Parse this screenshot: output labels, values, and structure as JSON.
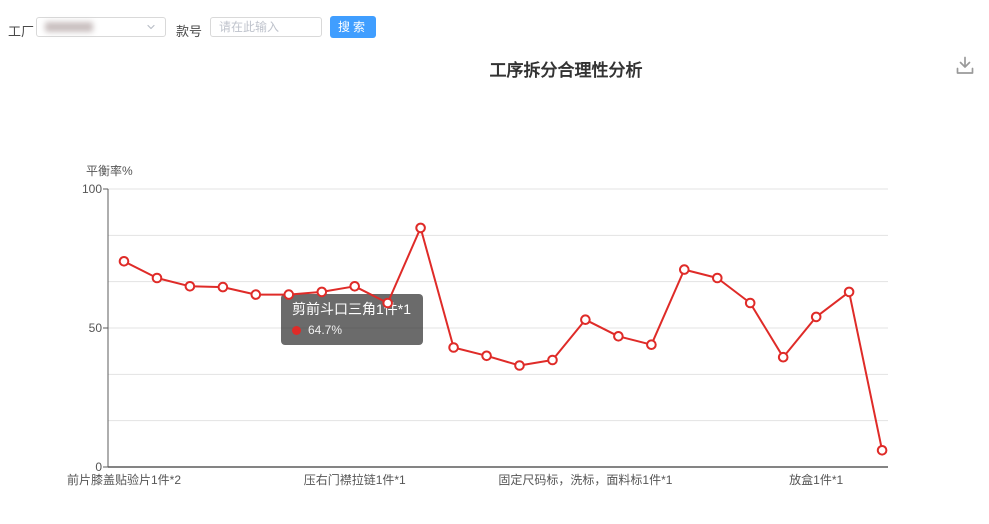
{
  "colors": {
    "accent_blue": "#409eff",
    "line_red": "#df2b28",
    "tooltip_bg": "rgba(50,50,50,0.72)",
    "grid_line": "#e3e3e3",
    "axis_line": "#5c5c5c"
  },
  "toolbar": {
    "factory_label": "工厂",
    "factory_select": {
      "value_redacted": true,
      "chevron_icon": "chevron-down-icon"
    },
    "style_label": "款号",
    "style_input": {
      "value": "",
      "placeholder": "请在此输入"
    },
    "search_button_label": "搜索"
  },
  "header": {
    "title": "工序拆分合理性分析",
    "download_icon": "download-icon"
  },
  "chart_data": {
    "type": "line",
    "title": "工序拆分合理性分析",
    "ylabel": "平衡率%",
    "xlabel": "",
    "ylim": [
      0,
      100
    ],
    "yticks": [
      0,
      50,
      100
    ],
    "grid": true,
    "grid_splits": 6,
    "legend": "none",
    "marker": "hollow-circle",
    "series": [
      {
        "name": "平衡率",
        "values": [
          74,
          68,
          65,
          64.7,
          62,
          62,
          63,
          65,
          59,
          86,
          43,
          40,
          36.5,
          38.5,
          53,
          47,
          44,
          71,
          68,
          59,
          39.5,
          54,
          63,
          6
        ]
      }
    ],
    "n_points": 24,
    "visible_x_labels": [
      {
        "index": 0,
        "label": "前片膝盖贴验片1件*2"
      },
      {
        "index": 7,
        "label": "压右门襟拉链1件*1"
      },
      {
        "index": 14,
        "label": "固定尺码标，洗标，面料标1件*1"
      },
      {
        "index": 21,
        "label": "放盒1件*1"
      }
    ],
    "tooltip": {
      "name": "剪前斗口三角1件*1",
      "value": "64.7%"
    }
  }
}
